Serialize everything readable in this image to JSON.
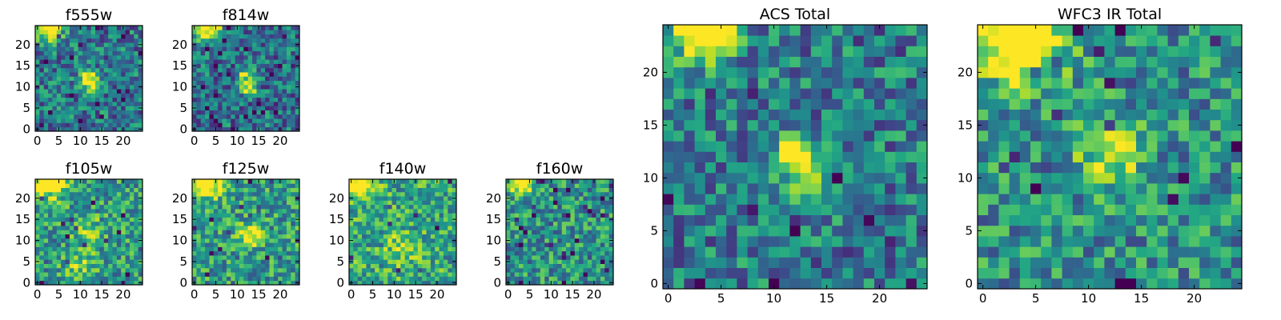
{
  "chart_data": {
    "type": "heatmap",
    "colormap": "viridis",
    "grid": false,
    "panels": [
      {
        "id": "f555w",
        "title": "f555w",
        "size": "small",
        "xticks": [
          0,
          5,
          10,
          15,
          20
        ],
        "yticks": [
          0,
          5,
          10,
          15,
          20
        ],
        "xlim": [
          0,
          25
        ],
        "ylim": [
          0,
          25
        ],
        "seed": 11,
        "blobs": [
          [
            3,
            24,
            0.9,
            2.2
          ],
          [
            12,
            12,
            0.75,
            1.4
          ],
          [
            13,
            9,
            0.4,
            1.2
          ]
        ],
        "base": 0.4
      },
      {
        "id": "f814w",
        "title": "f814w",
        "size": "small",
        "xticks": [
          0,
          5,
          10,
          15,
          20
        ],
        "yticks": [
          0,
          5,
          10,
          15,
          20
        ],
        "xlim": [
          0,
          25
        ],
        "ylim": [
          0,
          25
        ],
        "seed": 23,
        "blobs": [
          [
            3,
            24,
            0.85,
            2.2
          ],
          [
            12,
            12,
            0.6,
            1.4
          ],
          [
            13,
            9,
            0.4,
            1.2
          ]
        ],
        "base": 0.38
      },
      {
        "id": "f105w",
        "title": "f105w",
        "size": "small",
        "xticks": [
          0,
          5,
          10,
          15,
          20
        ],
        "yticks": [
          0,
          5,
          10,
          15,
          20
        ],
        "xlim": [
          0,
          25
        ],
        "ylim": [
          0,
          25
        ],
        "seed": 37,
        "blobs": [
          [
            3,
            24,
            0.9,
            2.4
          ],
          [
            12,
            12,
            0.3,
            2.2
          ],
          [
            10,
            4,
            0.25,
            2.5
          ]
        ],
        "base": 0.55
      },
      {
        "id": "f125w",
        "title": "f125w",
        "size": "small",
        "xticks": [
          0,
          5,
          10,
          15,
          20
        ],
        "yticks": [
          0,
          5,
          10,
          15,
          20
        ],
        "xlim": [
          0,
          25
        ],
        "ylim": [
          0,
          25
        ],
        "seed": 41,
        "blobs": [
          [
            3,
            24,
            0.8,
            2.4
          ],
          [
            13,
            11,
            0.55,
            1.8
          ]
        ],
        "base": 0.55
      },
      {
        "id": "f140w",
        "title": "f140w",
        "size": "small",
        "xticks": [
          0,
          5,
          10,
          15,
          20
        ],
        "yticks": [
          0,
          5,
          10,
          15,
          20
        ],
        "xlim": [
          0,
          25
        ],
        "ylim": [
          0,
          25
        ],
        "seed": 53,
        "blobs": [
          [
            2,
            24,
            0.8,
            2.4
          ],
          [
            12,
            8,
            0.3,
            2.5
          ]
        ],
        "base": 0.6
      },
      {
        "id": "f160w",
        "title": "f160w",
        "size": "small",
        "xticks": [
          0,
          5,
          10,
          15,
          20
        ],
        "yticks": [
          0,
          5,
          10,
          15,
          20
        ],
        "xlim": [
          0,
          25
        ],
        "ylim": [
          0,
          25
        ],
        "seed": 67,
        "blobs": [
          [
            3,
            24,
            0.85,
            2.0
          ]
        ],
        "base": 0.52
      },
      {
        "id": "acs-total",
        "title": "ACS Total",
        "size": "large",
        "xticks": [
          0,
          5,
          10,
          15,
          20
        ],
        "yticks": [
          0,
          5,
          10,
          15,
          20
        ],
        "xlim": [
          0,
          25
        ],
        "ylim": [
          0,
          25
        ],
        "seed": 79,
        "blobs": [
          [
            3.5,
            23.5,
            1.0,
            1.8
          ],
          [
            12,
            12,
            0.8,
            1.3
          ],
          [
            13,
            9,
            0.4,
            1.3
          ]
        ],
        "base": 0.42
      },
      {
        "id": "wfc3-ir-total",
        "title": "WFC3 IR Total",
        "size": "large",
        "xticks": [
          0,
          5,
          10,
          15,
          20
        ],
        "yticks": [
          0,
          5,
          10,
          15,
          20
        ],
        "xlim": [
          0,
          25
        ],
        "ylim": [
          0,
          25
        ],
        "seed": 97,
        "blobs": [
          [
            3.5,
            23,
            1.0,
            2.5
          ],
          [
            12,
            12,
            0.45,
            2.0
          ]
        ],
        "base": 0.5
      }
    ]
  }
}
